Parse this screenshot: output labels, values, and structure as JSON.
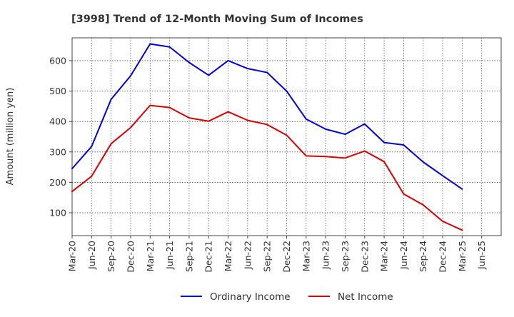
{
  "chart_data": {
    "type": "line",
    "title": "[3998]  Trend of 12-Month Moving Sum of Incomes",
    "xlabel": "",
    "ylabel": "Amount (million yen)",
    "ylim": [
      25,
      675
    ],
    "yticks": [
      100,
      200,
      300,
      400,
      500,
      600
    ],
    "grid": true,
    "legend": "bottom-center",
    "categories": [
      "Mar-20",
      "Jun-20",
      "Sep-20",
      "Dec-20",
      "Mar-21",
      "Jun-21",
      "Sep-21",
      "Dec-21",
      "Mar-22",
      "Jun-22",
      "Sep-22",
      "Dec-22",
      "Mar-23",
      "Jun-23",
      "Sep-23",
      "Dec-23",
      "Mar-24",
      "Jun-24",
      "Sep-24",
      "Dec-24",
      "Mar-25",
      "Jun-25"
    ],
    "series": [
      {
        "name": "Ordinary Income",
        "color": "#0000dd",
        "values": [
          245,
          318,
          473,
          550,
          655,
          645,
          594,
          552,
          600,
          574,
          561,
          500,
          408,
          375,
          358,
          392,
          331,
          323,
          267,
          222,
          178,
          null
        ]
      },
      {
        "name": "Net Income",
        "color": "#dd0000",
        "values": [
          170,
          220,
          327,
          380,
          453,
          446,
          412,
          401,
          432,
          404,
          390,
          355,
          287,
          285,
          280,
          303,
          268,
          162,
          126,
          72,
          43,
          null
        ]
      }
    ]
  }
}
